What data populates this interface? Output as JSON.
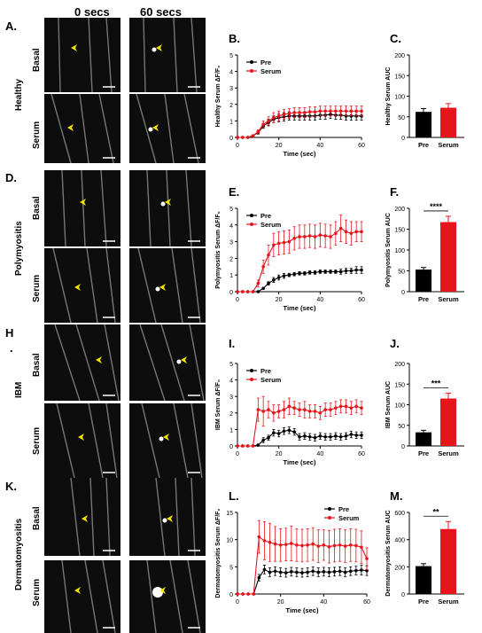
{
  "column_headers": [
    "0 secs",
    "60 secs"
  ],
  "row_labels": {
    "basal": "Basal",
    "serum": "Serum"
  },
  "panels": [
    {
      "id": "healthy",
      "letter": "A.",
      "condition": "Healthy",
      "line_letter": "B.",
      "bar_letter": "C."
    },
    {
      "id": "poly",
      "letter": "D.",
      "condition": "Polymyositis",
      "line_letter": "E.",
      "bar_letter": "F."
    },
    {
      "id": "ibm",
      "letter": "H",
      "condition": "IBM",
      "line_letter": "I.",
      "bar_letter": "J."
    },
    {
      "id": "derm",
      "letter": "K.",
      "condition": "Dermatomyositis",
      "line_letter": "L.",
      "bar_letter": "M."
    }
  ],
  "dot_mark": ".",
  "colors": {
    "pre": "#000000",
    "serum": "#e8141b",
    "arrow": "#f2e600"
  },
  "chart_data": [
    {
      "type": "line",
      "panel": "B.",
      "ylabel": "Healthy Serum ΔF/F₀",
      "xlabel": "Time (sec)",
      "xlim": [
        0,
        60
      ],
      "ylim": [
        0,
        5
      ],
      "xticks": [
        0,
        20,
        40,
        60
      ],
      "yticks": [
        0,
        1,
        2,
        3,
        4,
        5
      ],
      "legend": "top-left",
      "x": [
        0,
        2.5,
        5,
        7.5,
        10,
        12.5,
        15,
        17.5,
        20,
        22.5,
        25,
        27.5,
        30,
        32.5,
        35,
        37.5,
        40,
        42.5,
        45,
        47.5,
        50,
        52.5,
        55,
        57.5,
        60
      ],
      "series": [
        {
          "name": "Pre",
          "values": [
            0,
            0,
            0,
            0.1,
            0.3,
            0.7,
            0.9,
            1.1,
            1.2,
            1.25,
            1.3,
            1.3,
            1.3,
            1.3,
            1.3,
            1.3,
            1.35,
            1.35,
            1.4,
            1.35,
            1.35,
            1.3,
            1.3,
            1.3,
            1.3
          ],
          "err": [
            0,
            0,
            0,
            0.05,
            0.1,
            0.15,
            0.2,
            0.2,
            0.25,
            0.25,
            0.25,
            0.25,
            0.25,
            0.25,
            0.25,
            0.25,
            0.25,
            0.25,
            0.25,
            0.25,
            0.25,
            0.25,
            0.25,
            0.25,
            0.25
          ]
        },
        {
          "name": "Serum",
          "values": [
            0,
            0,
            0,
            0.1,
            0.35,
            0.8,
            1.0,
            1.2,
            1.3,
            1.4,
            1.45,
            1.5,
            1.5,
            1.5,
            1.55,
            1.55,
            1.6,
            1.6,
            1.6,
            1.6,
            1.6,
            1.6,
            1.6,
            1.6,
            1.6
          ],
          "err": [
            0,
            0,
            0,
            0.05,
            0.1,
            0.2,
            0.25,
            0.3,
            0.3,
            0.3,
            0.3,
            0.3,
            0.3,
            0.3,
            0.3,
            0.3,
            0.3,
            0.3,
            0.3,
            0.3,
            0.3,
            0.3,
            0.3,
            0.3,
            0.3
          ]
        }
      ]
    },
    {
      "type": "bar",
      "panel": "C.",
      "ylabel": "Healthy Serum AUC",
      "categories": [
        "Pre",
        "Serum"
      ],
      "values": [
        62,
        72
      ],
      "err": [
        8,
        10
      ],
      "ylim": [
        0,
        200
      ],
      "yticks": [
        0,
        50,
        100,
        150,
        200
      ],
      "significance": ""
    },
    {
      "type": "line",
      "panel": "E.",
      "ylabel": "Polymyositis Serum ΔF/F₀",
      "xlabel": "Time (sec)",
      "xlim": [
        0,
        60
      ],
      "ylim": [
        0,
        5
      ],
      "xticks": [
        0,
        20,
        40,
        60
      ],
      "yticks": [
        0,
        1,
        2,
        3,
        4,
        5
      ],
      "legend": "top-left",
      "x": [
        0,
        2.5,
        5,
        7.5,
        10,
        12.5,
        15,
        17.5,
        20,
        22.5,
        25,
        27.5,
        30,
        32.5,
        35,
        37.5,
        40,
        42.5,
        45,
        47.5,
        50,
        52.5,
        55,
        57.5,
        60
      ],
      "series": [
        {
          "name": "Pre",
          "values": [
            0,
            0,
            0,
            0,
            0,
            0.2,
            0.5,
            0.7,
            0.85,
            0.95,
            1.0,
            1.05,
            1.1,
            1.1,
            1.15,
            1.15,
            1.2,
            1.2,
            1.2,
            1.2,
            1.2,
            1.25,
            1.25,
            1.3,
            1.3
          ],
          "err": [
            0,
            0,
            0,
            0,
            0,
            0.05,
            0.1,
            0.15,
            0.15,
            0.15,
            0.1,
            0.1,
            0.1,
            0.1,
            0.1,
            0.1,
            0.1,
            0.1,
            0.1,
            0.1,
            0.15,
            0.15,
            0.15,
            0.2,
            0.2
          ]
        },
        {
          "name": "Serum",
          "values": [
            0,
            0,
            0,
            0,
            0.5,
            1.5,
            2.2,
            2.8,
            2.9,
            2.95,
            3.0,
            3.2,
            3.3,
            3.3,
            3.35,
            3.3,
            3.4,
            3.35,
            3.3,
            3.5,
            3.8,
            3.6,
            3.5,
            3.6,
            3.6
          ],
          "err": [
            0,
            0,
            0,
            0,
            0.2,
            0.4,
            0.6,
            0.7,
            0.7,
            0.7,
            0.7,
            0.7,
            0.7,
            0.7,
            0.7,
            0.7,
            0.7,
            0.7,
            0.7,
            0.7,
            0.8,
            0.7,
            0.7,
            0.6,
            0.6
          ]
        }
      ]
    },
    {
      "type": "bar",
      "panel": "F.",
      "ylabel": "Polymyositis Serum AUC",
      "categories": [
        "Pre",
        "Serum"
      ],
      "values": [
        53,
        167
      ],
      "err": [
        5,
        14
      ],
      "ylim": [
        0,
        200
      ],
      "yticks": [
        0,
        50,
        100,
        150,
        200
      ],
      "significance": "****"
    },
    {
      "type": "line",
      "panel": "I.",
      "ylabel": "IBM Serum ΔF/F₀",
      "xlabel": "Time (sec)",
      "xlim": [
        0,
        60
      ],
      "ylim": [
        0,
        5
      ],
      "xticks": [
        0,
        20,
        40,
        60
      ],
      "yticks": [
        0,
        1,
        2,
        3,
        4,
        5
      ],
      "legend": "top-left",
      "x": [
        0,
        2.5,
        5,
        7.5,
        10,
        12.5,
        15,
        17.5,
        20,
        22.5,
        25,
        27.5,
        30,
        32.5,
        35,
        37.5,
        40,
        42.5,
        45,
        47.5,
        50,
        52.5,
        55,
        57.5,
        60
      ],
      "series": [
        {
          "name": "Pre",
          "values": [
            0,
            0,
            0,
            0,
            0.05,
            0.35,
            0.5,
            0.8,
            0.75,
            0.9,
            0.95,
            0.85,
            0.55,
            0.6,
            0.55,
            0.5,
            0.6,
            0.55,
            0.55,
            0.6,
            0.55,
            0.6,
            0.7,
            0.65,
            0.65
          ],
          "err": [
            0,
            0,
            0,
            0,
            0.05,
            0.15,
            0.15,
            0.2,
            0.2,
            0.2,
            0.2,
            0.2,
            0.2,
            0.2,
            0.2,
            0.2,
            0.2,
            0.2,
            0.2,
            0.2,
            0.2,
            0.2,
            0.2,
            0.2,
            0.2
          ]
        },
        {
          "name": "Serum",
          "values": [
            0,
            0,
            0,
            0,
            2.2,
            2.1,
            2.2,
            2.0,
            2.1,
            2.2,
            2.4,
            2.3,
            2.2,
            2.2,
            2.1,
            2.1,
            2.0,
            2.2,
            2.2,
            2.3,
            2.4,
            2.4,
            2.3,
            2.4,
            2.3
          ],
          "err": [
            0,
            0,
            0,
            0,
            0.7,
            0.9,
            0.5,
            0.5,
            0.4,
            0.5,
            0.5,
            0.4,
            0.4,
            0.5,
            0.4,
            0.4,
            0.4,
            0.4,
            0.4,
            0.4,
            0.4,
            0.4,
            0.4,
            0.4,
            0.4
          ]
        }
      ]
    },
    {
      "type": "bar",
      "panel": "J.",
      "ylabel": "IBM Serum AUC",
      "categories": [
        "Pre",
        "Serum"
      ],
      "values": [
        33,
        115
      ],
      "err": [
        5,
        13
      ],
      "ylim": [
        0,
        200
      ],
      "yticks": [
        0,
        50,
        100,
        150,
        200
      ],
      "significance": "***"
    },
    {
      "type": "line",
      "panel": "L.",
      "ylabel": "Dermatomyositis Serum ΔF/F₀",
      "xlabel": "Time (sec)",
      "xlim": [
        0,
        60
      ],
      "ylim": [
        0,
        15
      ],
      "xticks": [
        0,
        20,
        40,
        60
      ],
      "yticks": [
        0,
        5,
        10,
        15
      ],
      "legend": "top-right",
      "x": [
        0,
        2.5,
        5,
        7.5,
        10,
        12.5,
        15,
        17.5,
        20,
        22.5,
        25,
        27.5,
        30,
        32.5,
        35,
        37.5,
        40,
        42.5,
        45,
        47.5,
        50,
        52.5,
        55,
        57.5,
        60
      ],
      "series": [
        {
          "name": "Pre",
          "values": [
            0,
            0,
            0,
            0,
            3.0,
            4.5,
            4.0,
            4.2,
            4.0,
            3.9,
            4.1,
            4.0,
            3.9,
            4.0,
            4.2,
            4.0,
            4.1,
            4.0,
            4.1,
            4.2,
            4.0,
            4.2,
            4.3,
            4.4,
            4.3
          ],
          "err": [
            0,
            0,
            0,
            0,
            0.6,
            0.8,
            0.8,
            0.8,
            0.8,
            0.8,
            0.8,
            0.8,
            0.8,
            0.8,
            0.8,
            0.8,
            0.8,
            0.8,
            0.8,
            0.8,
            0.8,
            0.8,
            0.8,
            0.9,
            0.9
          ]
        },
        {
          "name": "Serum",
          "values": [
            0,
            0,
            0,
            0,
            10.5,
            9.8,
            9.5,
            9.2,
            9.0,
            9.1,
            9.3,
            9.0,
            8.9,
            9.0,
            9.2,
            8.8,
            9.0,
            8.7,
            8.9,
            9.0,
            8.8,
            9.0,
            8.9,
            8.6,
            6.5
          ],
          "err": [
            0,
            0,
            0,
            0,
            3.0,
            3.5,
            3.5,
            3.2,
            3.0,
            3.0,
            3.2,
            3.0,
            3.0,
            3.0,
            3.0,
            3.0,
            2.8,
            3.0,
            3.0,
            3.0,
            3.0,
            3.0,
            3.0,
            3.0,
            2.0
          ]
        }
      ]
    },
    {
      "type": "bar",
      "panel": "M.",
      "ylabel": "Dermatomyositis Serum AUC",
      "categories": [
        "Pre",
        "Serum"
      ],
      "values": [
        205,
        478
      ],
      "err": [
        18,
        55
      ],
      "ylim": [
        0,
        600
      ],
      "yticks": [
        0,
        200,
        400,
        600
      ],
      "significance": "**"
    }
  ]
}
